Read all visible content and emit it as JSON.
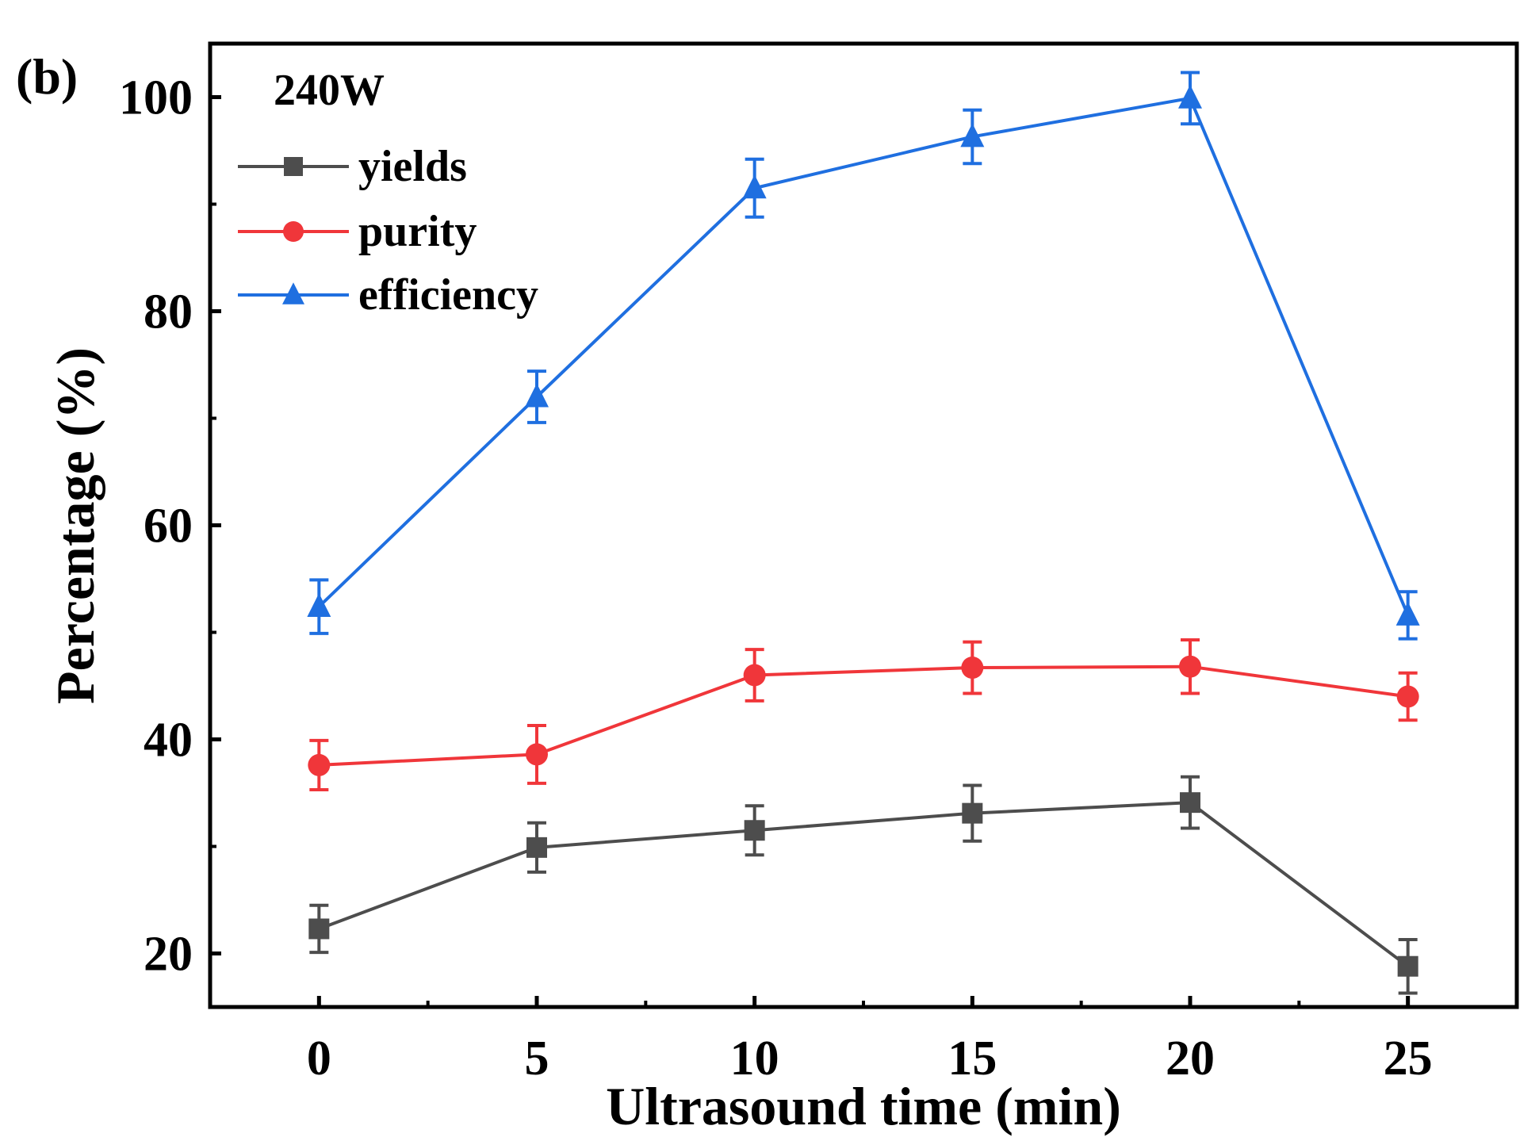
{
  "chart_data": {
    "type": "line",
    "panel_label": "(b)",
    "annotation": "240W",
    "xlabel": "Ultrasound time (min)",
    "ylabel": "Percentage (%)",
    "xlim": [
      -2.5,
      27.5
    ],
    "ylim": [
      15,
      105
    ],
    "xticks": [
      0,
      5,
      10,
      15,
      20,
      25
    ],
    "yticks": [
      20,
      40,
      60,
      80,
      100
    ],
    "x": [
      0,
      5,
      10,
      15,
      20,
      25
    ],
    "legend_position": "top-left",
    "series": [
      {
        "name": "yields",
        "color": "#4d4d4d",
        "marker": "square",
        "values": [
          22.3,
          29.9,
          31.5,
          33.1,
          34.1,
          18.8
        ],
        "errors": [
          2.2,
          2.3,
          2.3,
          2.6,
          2.4,
          2.5
        ]
      },
      {
        "name": "purity",
        "color": "#f0363a",
        "marker": "circle",
        "values": [
          37.6,
          38.6,
          46.0,
          46.7,
          46.8,
          44.0
        ],
        "errors": [
          2.3,
          2.7,
          2.4,
          2.4,
          2.5,
          2.2
        ]
      },
      {
        "name": "efficiency",
        "color": "#1f6fe0",
        "marker": "triangle",
        "values": [
          52.4,
          72.0,
          91.5,
          96.3,
          99.9,
          51.6
        ],
        "errors": [
          2.5,
          2.4,
          2.7,
          2.5,
          2.4,
          2.2
        ]
      }
    ]
  }
}
